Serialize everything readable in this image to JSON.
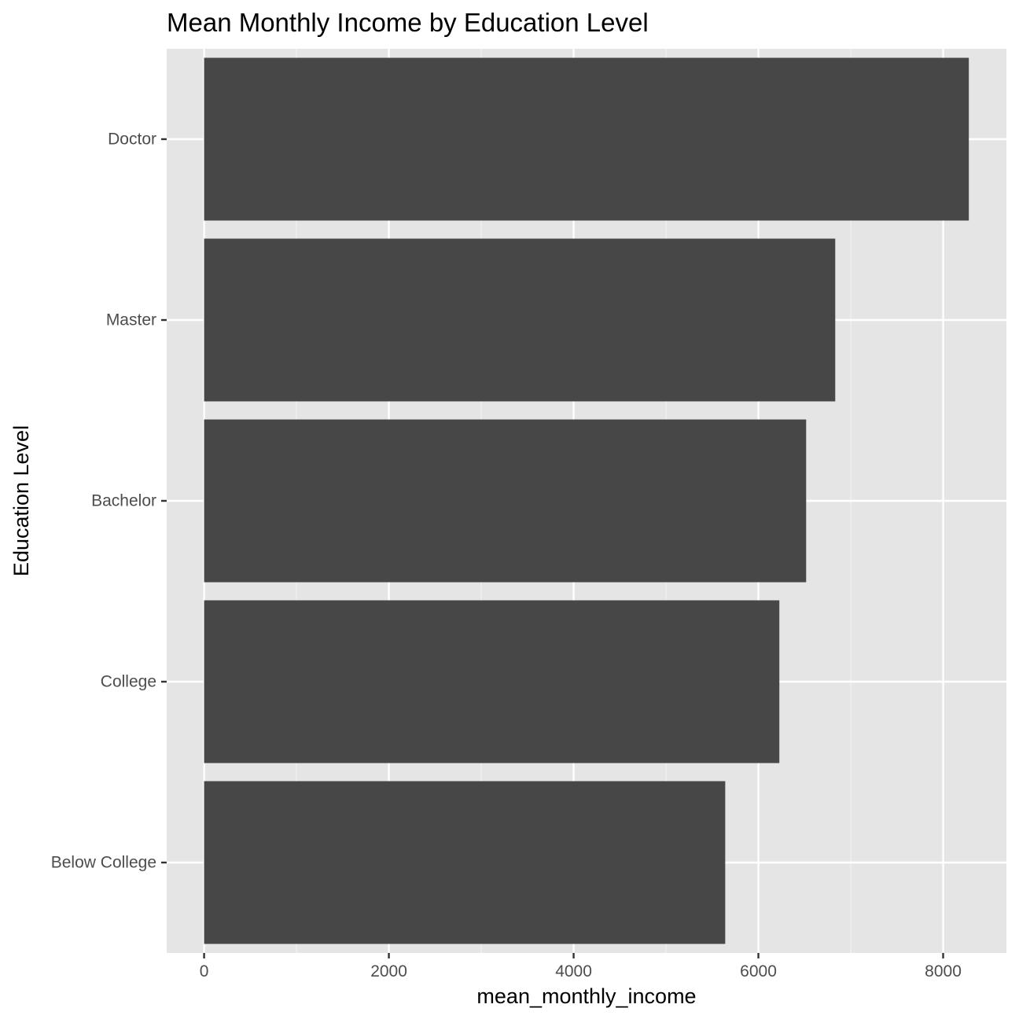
{
  "chart_data": {
    "type": "bar",
    "orientation": "horizontal",
    "title": "Mean Monthly Income by Education Level",
    "xlabel": "mean_monthly_income",
    "ylabel": "Education Level",
    "categories": [
      "Below College",
      "College",
      "Bachelor",
      "Master",
      "Doctor"
    ],
    "values": [
      5641,
      6227,
      6517,
      6832,
      8278
    ],
    "xlim": [
      -405,
      8685
    ],
    "x_ticks": [
      0,
      2000,
      4000,
      6000,
      8000
    ],
    "x_tick_labels": [
      "0",
      "2000",
      "4000",
      "6000",
      "8000"
    ],
    "grid": true,
    "legend": "none",
    "colors": {
      "bar": "#474747",
      "panel_background": "#e5e5e5",
      "grid_major": "#ffffff",
      "grid_minor": "#f2f2f2",
      "tick_text": "#4d4d4d",
      "tick_mark": "#333333",
      "title_text": "#000000"
    }
  }
}
